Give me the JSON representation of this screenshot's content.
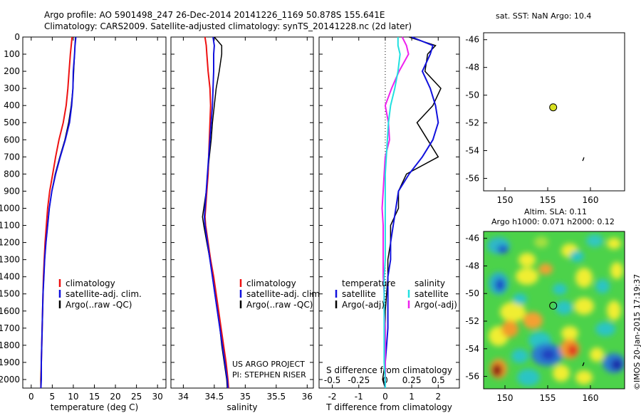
{
  "title": {
    "line1": "Argo profile: AO 5901498_247 26-Dec-2014 20141226_1169 50.878S 155.641E",
    "line2": "Climatology: CARS2009. Satellite-adjusted climatology: synTS_20141228.nc (2d later)"
  },
  "colors": {
    "climatology": "#ee1111",
    "satellite": "#1111dd",
    "argo": "#000000",
    "cyan": "#22e0e0",
    "magenta": "#ee22ee",
    "marker": "#d8e020"
  },
  "depth_ticks": [
    0,
    100,
    200,
    300,
    400,
    500,
    600,
    700,
    800,
    900,
    1000,
    1100,
    1200,
    1300,
    1400,
    1500,
    1600,
    1700,
    1800,
    1900,
    2000
  ],
  "temperature_panel": {
    "xlabel": "temperature (deg C)",
    "xticks": [
      "0",
      "5",
      "10",
      "15",
      "20",
      "25",
      "30"
    ],
    "legend": [
      "climatology",
      "satellite-adj. clim.",
      "Argo(..raw -QC)"
    ]
  },
  "salinity_panel": {
    "xlabel": "salinity",
    "xticks": [
      "34",
      "34.5",
      "35",
      "35.5",
      "36"
    ],
    "legend": [
      "climatology",
      "satellite-adj. clim.",
      "Argo(..raw -QC)"
    ],
    "credit1": "US ARGO PROJECT",
    "credit2": "PI: STEPHEN RISER"
  },
  "diff_panel": {
    "xlabel": "T difference from climatology",
    "s_label": "S difference from climatology",
    "t_ticks": [
      "-2",
      "-1",
      "0",
      "1",
      "2"
    ],
    "s_ticks": [
      "-0.5",
      "-0.25",
      "0",
      "0.25",
      "0.5"
    ],
    "legend_temperature_title": "temperature",
    "legend_salinity_title": "salinity",
    "legend_temperature": [
      "satellite",
      "Argo(-adj)"
    ],
    "legend_salinity": [
      "satellite",
      "Argo(-adj)"
    ]
  },
  "sst_map": {
    "title": "sat. SST: NaN Argo: 10.4",
    "xticks": [
      "150",
      "155",
      "160"
    ],
    "yticks": [
      "-46",
      "-48",
      "-50",
      "-52",
      "-54",
      "-56"
    ]
  },
  "sla_map": {
    "title1": "Altim. SLA: 0.11",
    "title2": "Argo h1000: 0.071 h2000: 0.12",
    "xticks": [
      "150",
      "155",
      "160"
    ],
    "yticks": [
      "-46",
      "-48",
      "-50",
      "-52",
      "-54",
      "-56"
    ]
  },
  "watermark": "©IMOS 20-Jan-2015 17:19:37",
  "chart_data": [
    {
      "type": "line",
      "title": "",
      "xlabel": "temperature (deg C)",
      "ylabel": "",
      "xlim": [
        -2,
        32
      ],
      "ylim": [
        2050,
        0
      ],
      "y_inverted": true,
      "depth": [
        0,
        50,
        100,
        200,
        300,
        400,
        500,
        600,
        700,
        800,
        900,
        1000,
        1100,
        1200,
        1300,
        1400,
        1500,
        1600,
        1700,
        1800,
        1900,
        2000,
        2050
      ],
      "series": [
        {
          "name": "climatology",
          "values": [
            9.7,
            9.5,
            9.3,
            9.0,
            8.7,
            8.3,
            7.6,
            6.6,
            5.8,
            5.1,
            4.4,
            3.9,
            3.6,
            3.3,
            3.1,
            2.9,
            2.8,
            2.7,
            2.6,
            2.5,
            2.4,
            2.3,
            2.3
          ]
        },
        {
          "name": "satellite-adj. clim.",
          "values": [
            10.6,
            10.4,
            10.3,
            10.0,
            9.9,
            9.6,
            9.1,
            8.1,
            6.9,
            5.8,
            4.9,
            4.3,
            3.9,
            3.5,
            3.2,
            3.0,
            2.8,
            2.7,
            2.6,
            2.5,
            2.4,
            2.4,
            2.3
          ]
        },
        {
          "name": "Argo(..raw -QC)",
          "values": [
            10.5,
            10.4,
            10.3,
            10.1,
            9.9,
            9.5,
            8.9,
            8.0,
            6.8,
            5.7,
            4.9,
            4.3,
            3.9,
            3.5,
            3.2,
            3.0,
            2.8,
            2.7,
            2.6,
            2.5,
            2.4,
            2.3,
            2.3
          ]
        }
      ]
    },
    {
      "type": "line",
      "title": "",
      "xlabel": "salinity",
      "ylabel": "",
      "xlim": [
        33.8,
        36.1
      ],
      "ylim": [
        2050,
        0
      ],
      "y_inverted": true,
      "depth": [
        0,
        50,
        100,
        200,
        300,
        400,
        500,
        600,
        700,
        800,
        900,
        1000,
        1050,
        1100,
        1200,
        1300,
        1400,
        1500,
        1600,
        1700,
        1800,
        1900,
        2000,
        2050
      ],
      "series": [
        {
          "name": "climatology",
          "values": [
            34.35,
            34.37,
            34.38,
            34.4,
            34.43,
            34.44,
            34.43,
            34.42,
            34.41,
            34.4,
            34.38,
            34.36,
            34.35,
            34.36,
            34.4,
            34.44,
            34.49,
            34.53,
            34.57,
            34.61,
            34.65,
            34.69,
            34.72,
            34.73
          ]
        },
        {
          "name": "satellite-adj. clim.",
          "values": [
            34.48,
            34.5,
            34.49,
            34.49,
            34.48,
            34.47,
            34.45,
            34.43,
            34.41,
            34.39,
            34.37,
            34.35,
            34.34,
            34.35,
            34.39,
            34.43,
            34.47,
            34.51,
            34.55,
            34.59,
            34.63,
            34.67,
            34.71,
            34.72
          ]
        },
        {
          "name": "Argo(..raw -QC)",
          "values": [
            34.5,
            34.62,
            34.62,
            34.58,
            34.53,
            34.5,
            34.47,
            34.45,
            34.42,
            34.39,
            34.37,
            34.33,
            34.31,
            34.33,
            34.38,
            34.43,
            34.47,
            34.51,
            34.55,
            34.59,
            34.62,
            34.66,
            34.7,
            34.71
          ]
        }
      ]
    },
    {
      "type": "line",
      "title": "",
      "xlabel": "T difference from climatology",
      "x2label": "S difference from climatology",
      "ylabel": "",
      "xlim": [
        -2.5,
        2.8
      ],
      "x2lim": [
        -0.625,
        0.7
      ],
      "ylim": [
        2050,
        0
      ],
      "y_inverted": true,
      "depth": [
        0,
        50,
        100,
        200,
        300,
        400,
        500,
        600,
        700,
        800,
        900,
        1000,
        1100,
        1200,
        1300,
        1400,
        1500,
        1600,
        1700,
        1800,
        1900,
        2000,
        2050
      ],
      "series": [
        {
          "name": "temperature satellite",
          "axis": "T",
          "values": [
            1.0,
            1.8,
            1.7,
            1.4,
            1.7,
            1.9,
            2.0,
            1.8,
            1.4,
            0.9,
            0.5,
            0.4,
            0.3,
            0.2,
            0.2,
            0.1,
            0.1,
            0.1,
            0.1,
            0.05,
            0.0,
            0.0,
            0.0
          ]
        },
        {
          "name": "temperature Argo(-adj)",
          "axis": "T",
          "values": [
            0.9,
            1.9,
            1.6,
            1.5,
            2.1,
            1.8,
            1.2,
            1.6,
            2.0,
            0.8,
            0.5,
            0.5,
            0.2,
            0.2,
            0.1,
            0.1,
            0.05,
            0.0,
            0.0,
            0.0,
            0.0,
            -0.1,
            0.0
          ]
        },
        {
          "name": "salinity satellite",
          "axis": "S",
          "values": [
            0.12,
            0.12,
            0.14,
            0.12,
            0.09,
            0.05,
            0.03,
            0.02,
            0.01,
            0.0,
            0.0,
            0.0,
            0.0,
            0.0,
            0.0,
            -0.01,
            -0.01,
            -0.01,
            -0.01,
            -0.01,
            -0.01,
            0.0,
            0.0
          ]
        },
        {
          "name": "salinity Argo(-adj)",
          "axis": "S",
          "values": [
            0.16,
            0.2,
            0.22,
            0.13,
            0.06,
            0.0,
            0.03,
            0.04,
            0.0,
            -0.01,
            -0.02,
            -0.03,
            -0.02,
            -0.02,
            -0.02,
            -0.02,
            -0.01,
            -0.01,
            0.0,
            0.0,
            0.0,
            0.0,
            0.0
          ]
        }
      ]
    },
    {
      "type": "scatter",
      "title": "sat. SST: NaN Argo: 10.4",
      "xlim": [
        147.5,
        164
      ],
      "ylim": [
        -56.9,
        -45.5
      ],
      "points": [
        {
          "x": 155.641,
          "y": -50.878,
          "label": "Argo float"
        }
      ]
    },
    {
      "type": "heatmap",
      "title": "Altim. SLA: 0.11",
      "xlim": [
        147.5,
        164
      ],
      "ylim": [
        -56.9,
        -45.5
      ],
      "points": [
        {
          "x": 155.641,
          "y": -50.878,
          "label": "Argo float"
        }
      ]
    }
  ]
}
